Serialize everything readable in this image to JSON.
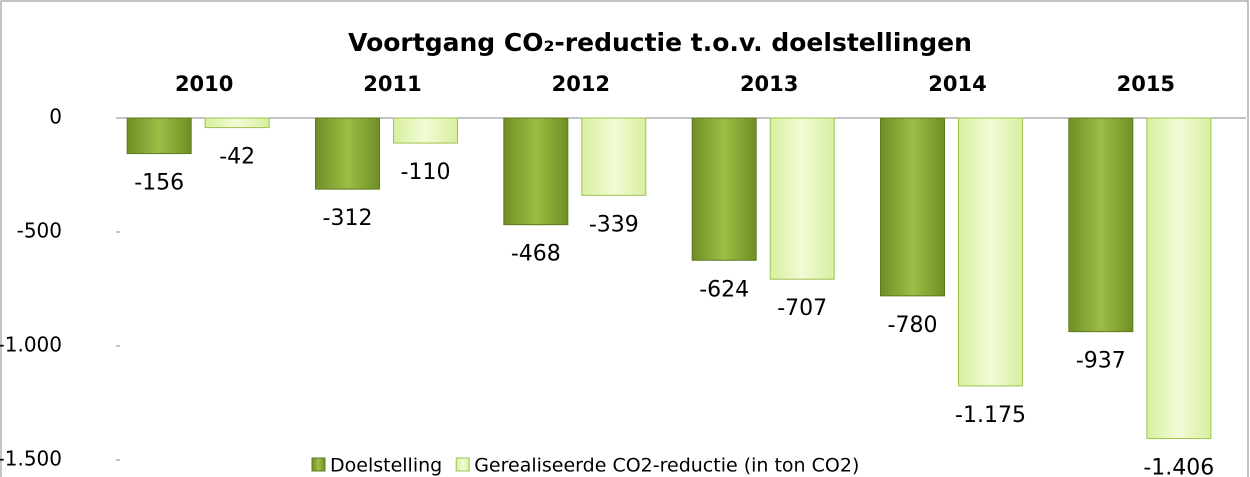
{
  "chart_data": {
    "type": "bar",
    "title": "Voortgang CO₂-reductie t.o.v. doelstellingen",
    "categories": [
      "2010",
      "2011",
      "2012",
      "2013",
      "2014",
      "2015"
    ],
    "series": [
      {
        "name": "Doelstelling",
        "color": "#8aab36",
        "values": [
          -156,
          -312,
          -468,
          -624,
          -780,
          -937
        ],
        "value_labels": [
          "-156",
          "-312",
          "-468",
          "-624",
          "-780",
          "-937"
        ]
      },
      {
        "name": "Gerealiseerde CO2-reductie (in ton CO2)",
        "color": "#e4f5b4",
        "values": [
          -42,
          -110,
          -339,
          -707,
          -1175,
          -1406
        ],
        "value_labels": [
          "-42",
          "-110",
          "-339",
          "-707",
          "-1.175",
          "-1.406"
        ]
      }
    ],
    "ylim": [
      -1500,
      0
    ],
    "yticks": [
      0,
      -500,
      {
        "value": -1000,
        "label": "-1.000"
      },
      {
        "value": -1500,
        "label": "-1.500"
      }
    ],
    "legend": "bottom"
  }
}
